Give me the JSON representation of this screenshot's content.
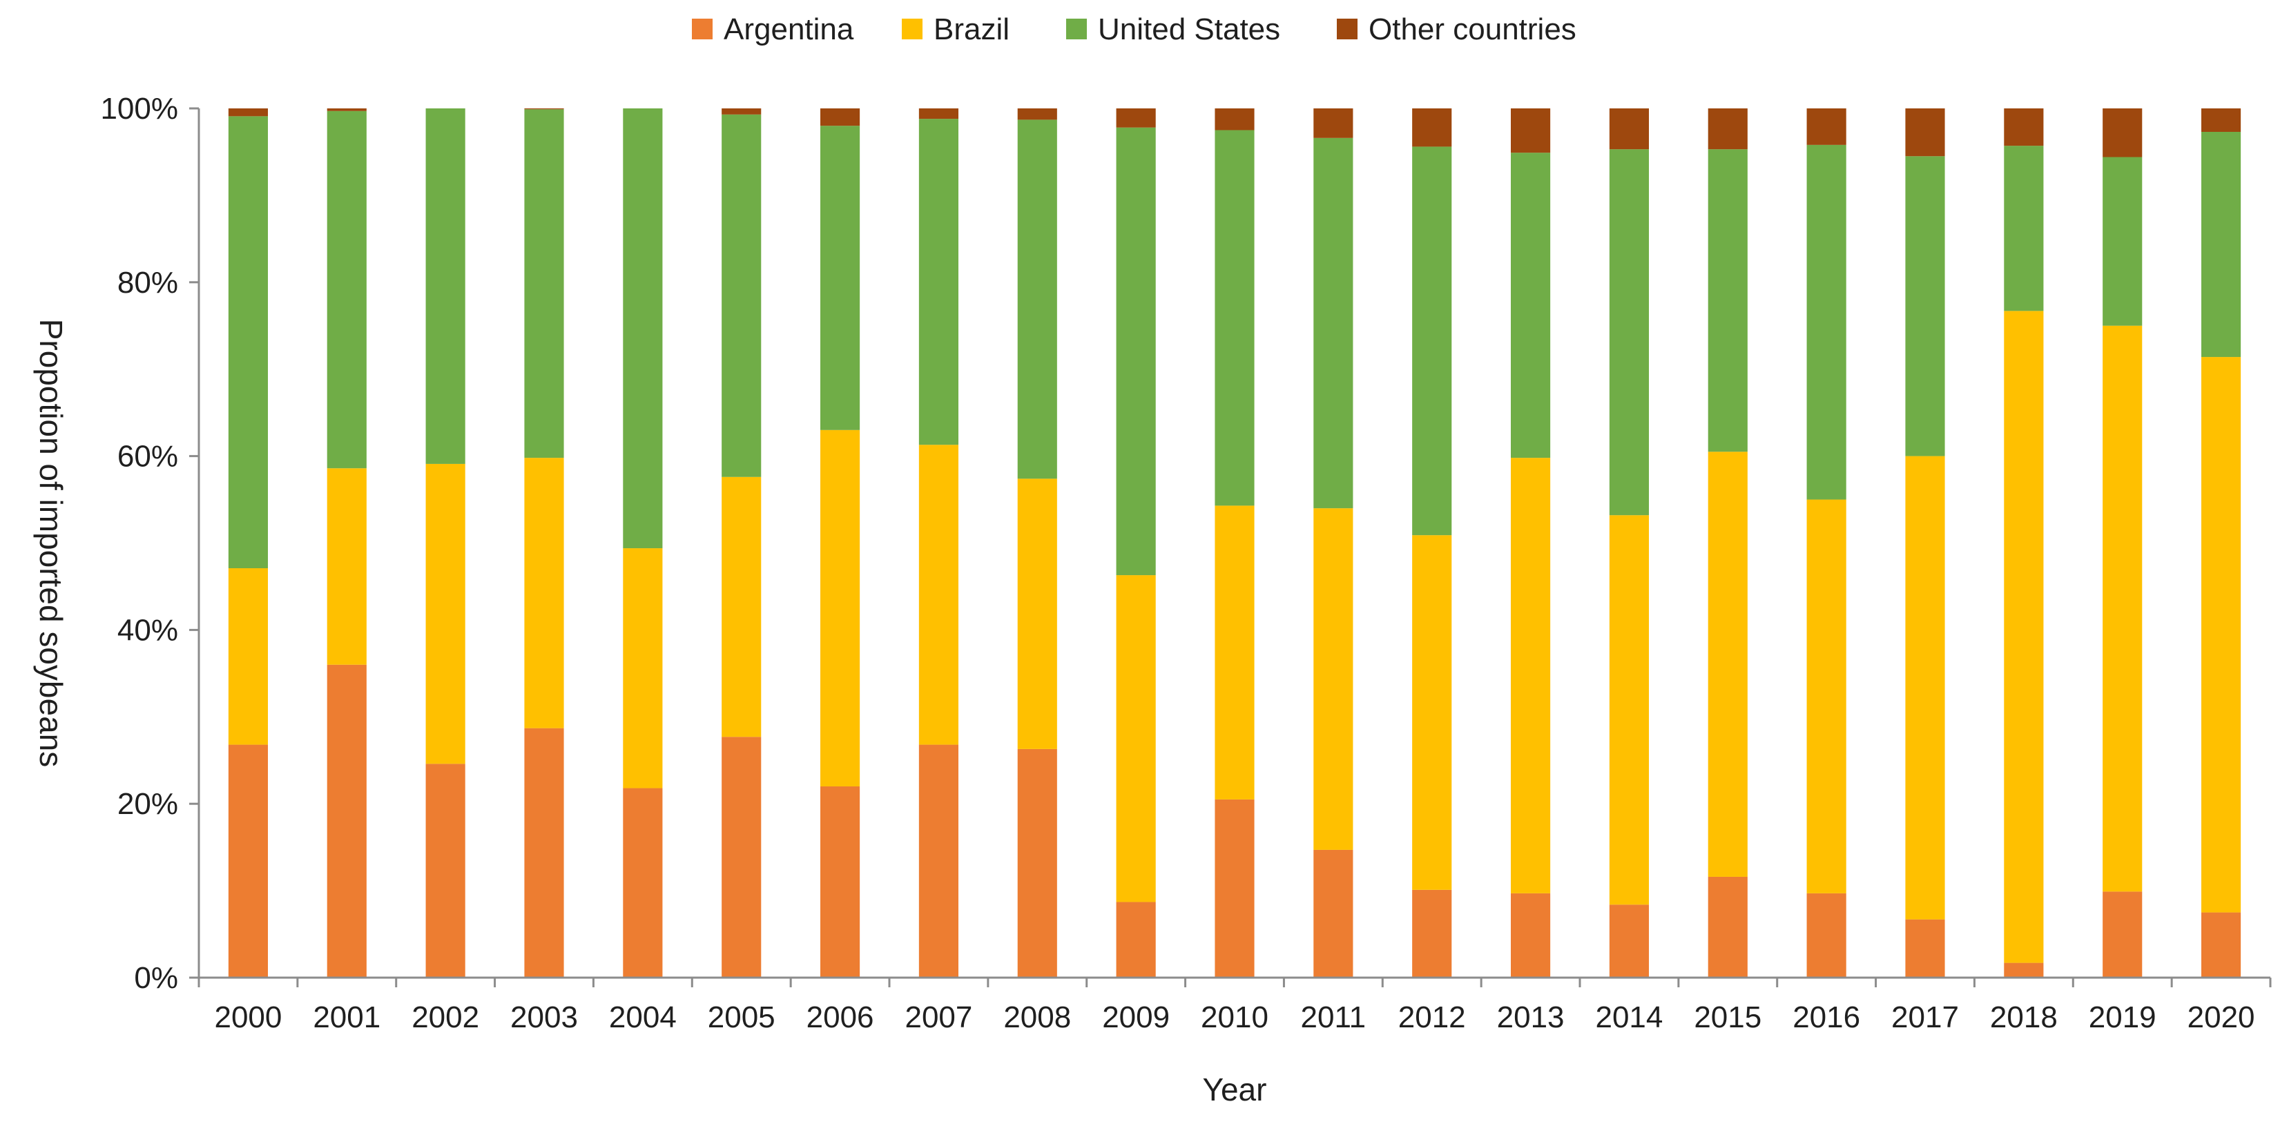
{
  "chart_data": {
    "type": "bar",
    "stacked": true,
    "title": "",
    "xlabel": "Year",
    "ylabel": "Propotion of imported soybeans",
    "ylim": [
      0,
      100
    ],
    "yticks": [
      0,
      20,
      40,
      60,
      80,
      100
    ],
    "ytick_labels": [
      "0%",
      "20%",
      "40%",
      "60%",
      "80%",
      "100%"
    ],
    "grid": false,
    "legend_position": "top-center",
    "categories": [
      "2000",
      "2001",
      "2002",
      "2003",
      "2004",
      "2005",
      "2006",
      "2007",
      "2008",
      "2009",
      "2010",
      "2011",
      "2012",
      "2013",
      "2014",
      "2015",
      "2016",
      "2017",
      "2018",
      "2019",
      "2020"
    ],
    "series": [
      {
        "name": "Argentina",
        "color": "#ed7d31",
        "values": [
          26.8,
          36.0,
          24.6,
          28.7,
          21.8,
          27.7,
          22.0,
          26.8,
          26.3,
          8.7,
          20.5,
          14.7,
          10.1,
          9.7,
          8.4,
          11.6,
          9.7,
          6.7,
          1.7,
          9.9,
          7.5
        ]
      },
      {
        "name": "Brazil",
        "color": "#ffc000",
        "values": [
          20.3,
          22.6,
          34.5,
          31.1,
          27.6,
          29.9,
          41.0,
          34.5,
          31.1,
          37.6,
          33.8,
          39.3,
          40.8,
          50.1,
          44.8,
          48.9,
          45.3,
          53.3,
          75.0,
          65.1,
          63.9
        ]
      },
      {
        "name": "United States",
        "color": "#70ad47",
        "values": [
          52.0,
          41.1,
          40.9,
          40.1,
          50.6,
          41.7,
          35.0,
          37.5,
          41.3,
          51.5,
          43.2,
          42.6,
          44.7,
          35.1,
          42.1,
          34.8,
          40.8,
          34.5,
          19.0,
          19.4,
          25.9
        ]
      },
      {
        "name": "Other countries",
        "color": "#9e480e",
        "values": [
          0.9,
          0.3,
          0.0,
          0.1,
          0.0,
          0.7,
          2.0,
          1.2,
          1.3,
          2.2,
          2.5,
          3.4,
          4.4,
          5.1,
          4.7,
          4.7,
          4.2,
          5.5,
          4.3,
          5.6,
          2.7
        ]
      }
    ]
  }
}
